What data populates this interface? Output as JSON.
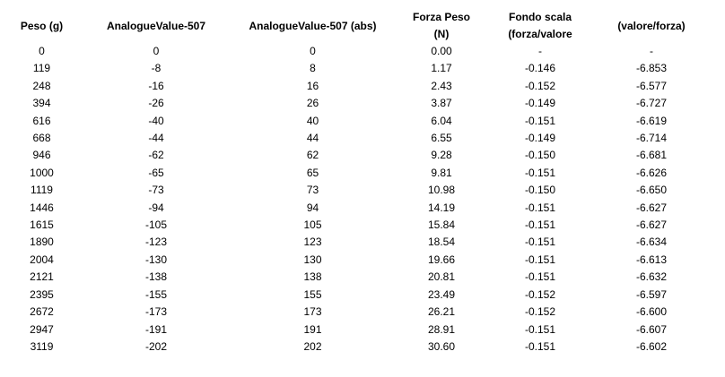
{
  "table": {
    "headers": [
      [
        "Peso (g)"
      ],
      [
        "AnalogueValue-507"
      ],
      [
        "AnalogueValue-507 (abs)"
      ],
      [
        "Forza Peso",
        "(N)"
      ],
      [
        "Fondo scala",
        "(forza/valore"
      ],
      [
        "(valore/forza)"
      ]
    ],
    "rows": [
      [
        "0",
        "0",
        "0",
        "0.00",
        "-",
        "-"
      ],
      [
        "119",
        "-8",
        "8",
        "1.17",
        "-0.146",
        "-6.853"
      ],
      [
        "248",
        "-16",
        "16",
        "2.43",
        "-0.152",
        "-6.577"
      ],
      [
        "394",
        "-26",
        "26",
        "3.87",
        "-0.149",
        "-6.727"
      ],
      [
        "616",
        "-40",
        "40",
        "6.04",
        "-0.151",
        "-6.619"
      ],
      [
        "668",
        "-44",
        "44",
        "6.55",
        "-0.149",
        "-6.714"
      ],
      [
        "946",
        "-62",
        "62",
        "9.28",
        "-0.150",
        "-6.681"
      ],
      [
        "1000",
        "-65",
        "65",
        "9.81",
        "-0.151",
        "-6.626"
      ],
      [
        "1119",
        "-73",
        "73",
        "10.98",
        "-0.150",
        "-6.650"
      ],
      [
        "1446",
        "-94",
        "94",
        "14.19",
        "-0.151",
        "-6.627"
      ],
      [
        "1615",
        "-105",
        "105",
        "15.84",
        "-0.151",
        "-6.627"
      ],
      [
        "1890",
        "-123",
        "123",
        "18.54",
        "-0.151",
        "-6.634"
      ],
      [
        "2004",
        "-130",
        "130",
        "19.66",
        "-0.151",
        "-6.613"
      ],
      [
        "2121",
        "-138",
        "138",
        "20.81",
        "-0.151",
        "-6.632"
      ],
      [
        "2395",
        "-155",
        "155",
        "23.49",
        "-0.152",
        "-6.597"
      ],
      [
        "2672",
        "-173",
        "173",
        "26.21",
        "-0.152",
        "-6.600"
      ],
      [
        "2947",
        "-191",
        "191",
        "28.91",
        "-0.151",
        "-6.607"
      ],
      [
        "3119",
        "-202",
        "202",
        "30.60",
        "-0.151",
        "-6.602"
      ]
    ]
  }
}
